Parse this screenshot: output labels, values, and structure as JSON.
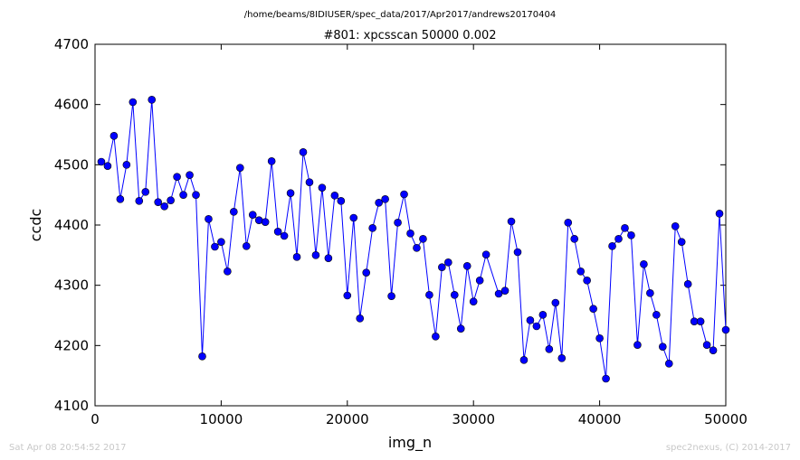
{
  "page": {
    "path": "/home/beams/8IDIUSER/spec_data/2017/Apr2017/andrews20170404",
    "footer_left": "Sat Apr 08 20:54:52 2017",
    "footer_right": "spec2nexus, (C) 2014-2017"
  },
  "chart_data": {
    "type": "line",
    "title": "#801: xpcsscan 50000 0.002",
    "xlabel": "img_n",
    "ylabel": "ccdc",
    "xlim": [
      0,
      50000
    ],
    "ylim": [
      4100,
      4700
    ],
    "xticks": [
      0,
      10000,
      20000,
      30000,
      40000,
      50000
    ],
    "yticks": [
      4100,
      4200,
      4300,
      4400,
      4500,
      4600,
      4700
    ],
    "grid": false,
    "line_color": "#0000ff",
    "marker_color": "#0000ff",
    "series": [
      {
        "marker": "circle",
        "x": [
          500,
          1000,
          1500,
          2000,
          2500,
          3000,
          3500,
          4000,
          4500,
          5000,
          5500,
          6000,
          6500,
          7000,
          7500,
          8000,
          8500,
          9000,
          9500,
          10000,
          10500,
          11000,
          11500,
          12000,
          12500,
          13000,
          13500,
          14000,
          14500,
          15000,
          15500,
          16000,
          16500,
          17000,
          17500,
          18000,
          18500,
          19000,
          19500,
          20000,
          20500,
          21000,
          21500,
          22000,
          22500,
          23000,
          23500,
          24000,
          24500,
          25000,
          25500,
          26000,
          26500,
          27000,
          27500,
          28000,
          28500,
          29000,
          29500,
          30000,
          30500,
          31000,
          32000,
          32500,
          33000,
          33500,
          34000,
          34500,
          35000,
          35500,
          36000,
          36500,
          37000,
          37500,
          38000,
          38500,
          39000,
          39500,
          40000,
          40500,
          41000,
          41500,
          42000,
          42500,
          43000,
          43500,
          44000,
          44500,
          45000,
          45500,
          46000,
          46500,
          47000,
          47500,
          48000,
          48500,
          49000,
          49500,
          50000
        ],
        "y": [
          4505,
          4498,
          4548,
          4443,
          4500,
          4604,
          4440,
          4455,
          4608,
          4438,
          4431,
          4441,
          4480,
          4450,
          4483,
          4450,
          4182,
          4410,
          4364,
          4372,
          4323,
          4422,
          4495,
          4365,
          4417,
          4408,
          4405,
          4506,
          4389,
          4382,
          4453,
          4347,
          4521,
          4471,
          4350,
          4462,
          4345,
          4449,
          4440,
          4283,
          4412,
          4245,
          4321,
          4395,
          4437,
          4443,
          4282,
          4404,
          4451,
          4386,
          4362,
          4377,
          4284,
          4215,
          4330,
          4338,
          4284,
          4228,
          4332,
          4273,
          4308,
          4351,
          4286,
          4291,
          4406,
          4355,
          4176,
          4242,
          4232,
          4251,
          4194,
          4271,
          4179,
          4404,
          4377,
          4323,
          4308,
          4261,
          4212,
          4145,
          4365,
          4377,
          4395,
          4383,
          4201,
          4335,
          4287,
          4251,
          4198,
          4170,
          4398,
          4372,
          4302,
          4240,
          4240,
          4201,
          4192,
          4419,
          4226
        ]
      }
    ]
  }
}
